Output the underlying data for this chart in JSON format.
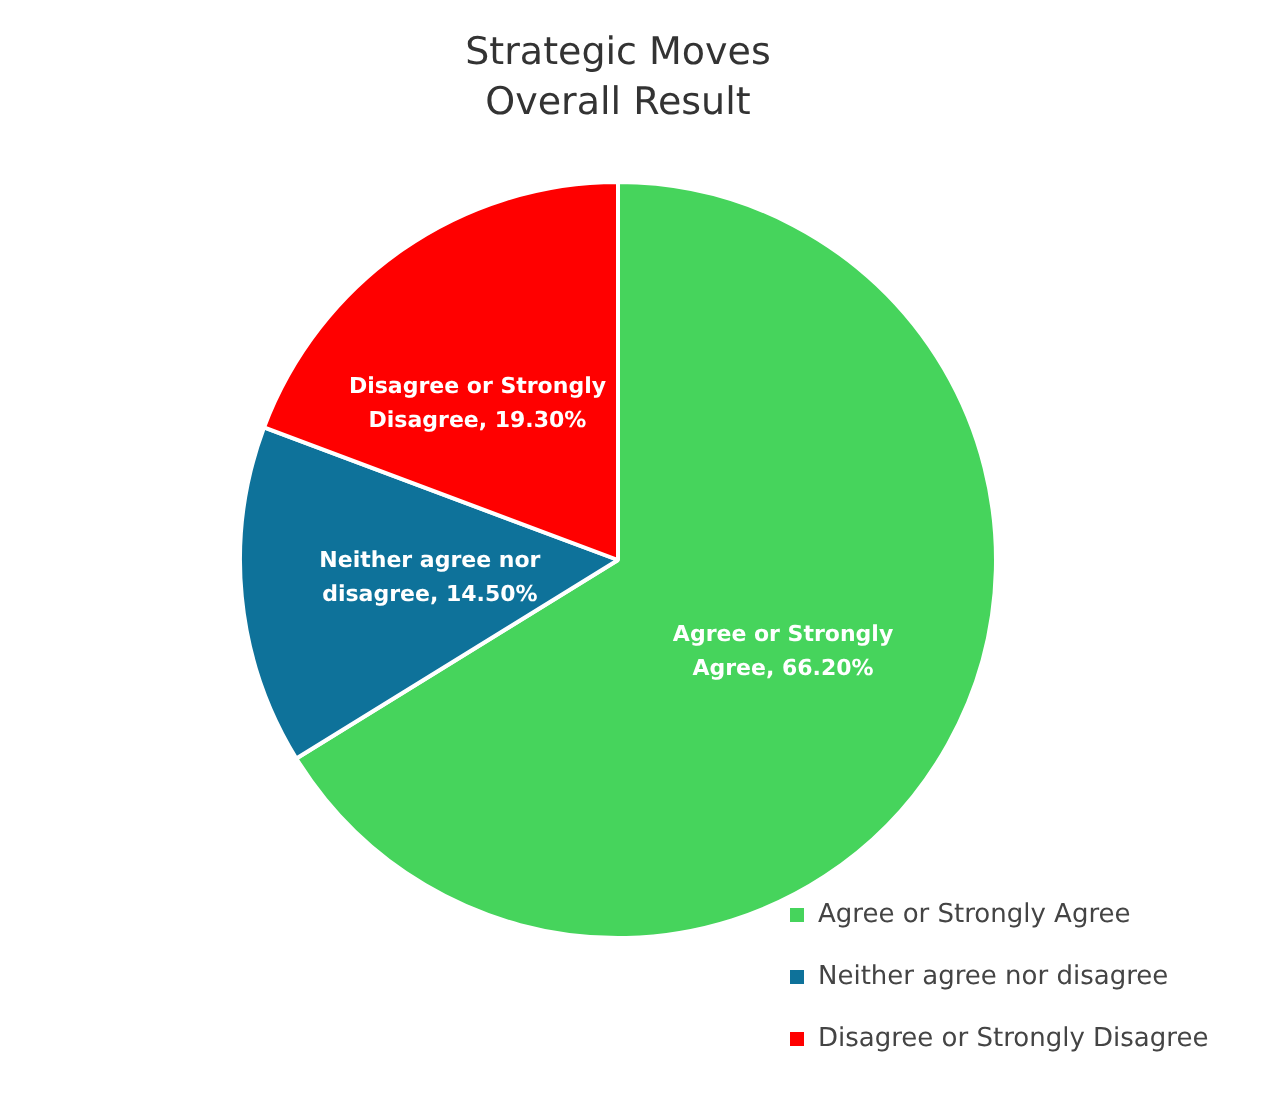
{
  "chart_data": {
    "type": "pie",
    "title": "Strategic Moves Overall Result",
    "categories": [
      "Agree or Strongly Agree",
      "Neither agree nor disagree",
      "Disagree or Strongly Disagree"
    ],
    "values": [
      66.2,
      14.5,
      19.3
    ],
    "colors": [
      "#46d45c",
      "#0e729a",
      "#ff0000"
    ],
    "value_labels": [
      "Agree or Strongly Agree, 66.20%",
      "Neither agree nor disagree, 14.50%",
      "Disagree or Strongly Disagree, 19.30%"
    ],
    "legend": "bottom right"
  }
}
